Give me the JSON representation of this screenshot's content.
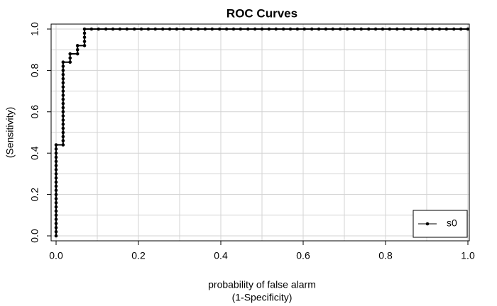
{
  "chart_data": {
    "type": "line",
    "title": "ROC Curves",
    "x_label": [
      "probability of false alarm",
      "(1-Specificity)"
    ],
    "y_label": "(Sensitivity)",
    "xlim": [
      0,
      1
    ],
    "ylim": [
      0,
      1
    ],
    "xticks": [
      {
        "value": 0,
        "label": "0.0"
      },
      0.2,
      0.4,
      0.6,
      0.8,
      {
        "value": 1,
        "label": "1.0"
      }
    ],
    "yticks": [
      {
        "value": 0,
        "label": "0.0"
      },
      0.2,
      0.4,
      0.6,
      0.8,
      {
        "value": 1,
        "label": "1.0"
      }
    ],
    "xgrid": [
      0,
      0.1,
      0.2,
      0.3,
      0.4,
      0.5,
      0.6,
      0.7,
      0.8,
      0.9,
      1
    ],
    "ygrid": [
      0,
      0.1,
      0.2,
      0.3,
      0.4,
      0.5,
      0.6,
      0.7,
      0.8,
      0.9,
      1
    ],
    "legend": "bottom-right",
    "series": [
      {
        "name": "s0",
        "color": "#000000",
        "x": [
          0,
          0,
          0,
          0,
          0,
          0,
          0,
          0,
          0,
          0,
          0,
          0,
          0,
          0,
          0,
          0,
          0,
          0,
          0,
          0,
          0,
          0,
          0,
          0.017,
          0.017,
          0.017,
          0.017,
          0.017,
          0.017,
          0.017,
          0.017,
          0.017,
          0.017,
          0.017,
          0.017,
          0.017,
          0.017,
          0.017,
          0.017,
          0.017,
          0.017,
          0.017,
          0.017,
          0.017,
          0.034,
          0.034,
          0.034,
          0.052,
          0.052,
          0.052,
          0.069,
          0.069,
          0.069,
          0.069,
          0.069,
          0.086,
          0.103,
          0.121,
          0.138,
          0.155,
          0.172,
          0.19,
          0.207,
          0.224,
          0.241,
          0.259,
          0.276,
          0.293,
          0.31,
          0.328,
          0.345,
          0.362,
          0.379,
          0.397,
          0.414,
          0.431,
          0.448,
          0.466,
          0.483,
          0.5,
          0.517,
          0.534,
          0.552,
          0.569,
          0.586,
          0.603,
          0.621,
          0.638,
          0.655,
          0.672,
          0.69,
          0.707,
          0.724,
          0.741,
          0.759,
          0.776,
          0.793,
          0.81,
          0.828,
          0.845,
          0.862,
          0.879,
          0.897,
          0.914,
          0.931,
          0.948,
          0.966,
          0.983,
          1
        ],
        "y": [
          0,
          0.02,
          0.04,
          0.06,
          0.08,
          0.1,
          0.12,
          0.14,
          0.16,
          0.18,
          0.2,
          0.22,
          0.24,
          0.26,
          0.28,
          0.3,
          0.32,
          0.34,
          0.36,
          0.38,
          0.4,
          0.42,
          0.44,
          0.44,
          0.46,
          0.48,
          0.5,
          0.52,
          0.54,
          0.56,
          0.58,
          0.6,
          0.62,
          0.64,
          0.66,
          0.68,
          0.7,
          0.72,
          0.74,
          0.76,
          0.78,
          0.8,
          0.82,
          0.84,
          0.84,
          0.86,
          0.88,
          0.88,
          0.9,
          0.92,
          0.92,
          0.94,
          0.96,
          0.98,
          1,
          1,
          1,
          1,
          1,
          1,
          1,
          1,
          1,
          1,
          1,
          1,
          1,
          1,
          1,
          1,
          1,
          1,
          1,
          1,
          1,
          1,
          1,
          1,
          1,
          1,
          1,
          1,
          1,
          1,
          1,
          1,
          1,
          1,
          1,
          1,
          1,
          1,
          1,
          1,
          1,
          1,
          1,
          1,
          1,
          1,
          1,
          1,
          1,
          1,
          1,
          1,
          1,
          1,
          1
        ]
      }
    ]
  }
}
